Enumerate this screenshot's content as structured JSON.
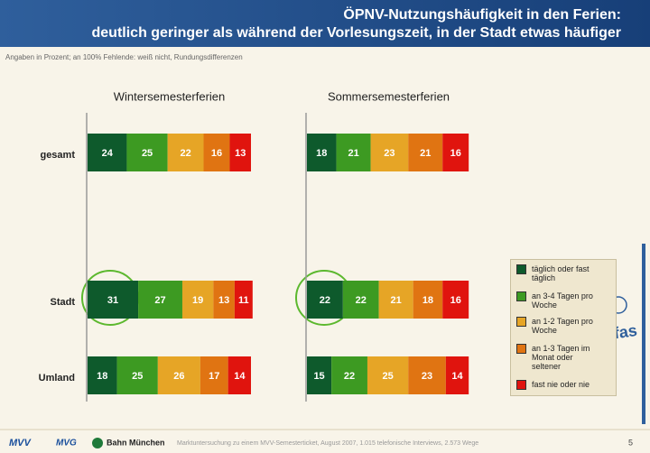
{
  "page": {
    "title_lines": [
      "ÖPNV-Nutzungshäufigkeit in den Ferien:",
      "deutlich geringer als während der Vorlesungszeit, in der Stadt etwas häufiger"
    ],
    "note": "Angaben in Prozent; an 100% Fehlende: weiß nicht, Rundungsdifferenzen",
    "logos": [
      "MVV",
      "MVG",
      "Bahn München",
      "infas"
    ],
    "footer": "Marktuntersuchung zu einem MVV-Semesterticket, August 2007, 1.015 telefonische Interviews, 2.573 Wege",
    "page_number": "5"
  },
  "chart_data": [
    {
      "type": "bar",
      "orientation": "horizontal",
      "stacked": true,
      "title": "Wintersemesterferien",
      "categories": [
        "gesamt",
        "Stadt",
        "Umland"
      ],
      "xlim": [
        0,
        100
      ],
      "series": [
        {
          "name": "täglich oder fast täglich",
          "color": "#0e5a2c",
          "values": [
            24,
            31,
            18
          ]
        },
        {
          "name": "an 3-4 Tagen pro Woche",
          "color": "#3d9a22",
          "values": [
            25,
            27,
            25
          ]
        },
        {
          "name": "an 1-2 Tagen pro Woche",
          "color": "#e6a526",
          "values": [
            22,
            19,
            26
          ]
        },
        {
          "name": "an 1-3 Tagen im Monat oder seltener",
          "color": "#e07412",
          "values": [
            16,
            13,
            17
          ]
        },
        {
          "name": "fast nie oder nie",
          "color": "#e0140e",
          "values": [
            13,
            11,
            14
          ]
        }
      ]
    },
    {
      "type": "bar",
      "orientation": "horizontal",
      "stacked": true,
      "title": "Sommersemesterferien",
      "xlim": [
        0,
        100
      ],
      "series": [
        {
          "color": "#0e5a2c",
          "values": [
            18,
            22,
            15
          ]
        },
        {
          "color": "#3d9a22",
          "values": [
            21,
            22,
            22
          ]
        },
        {
          "color": "#e6a526",
          "values": [
            23,
            21,
            25
          ]
        },
        {
          "color": "#e07412",
          "values": [
            21,
            18,
            23
          ]
        },
        {
          "color": "#e0140e",
          "values": [
            16,
            16,
            14
          ]
        }
      ]
    }
  ]
}
